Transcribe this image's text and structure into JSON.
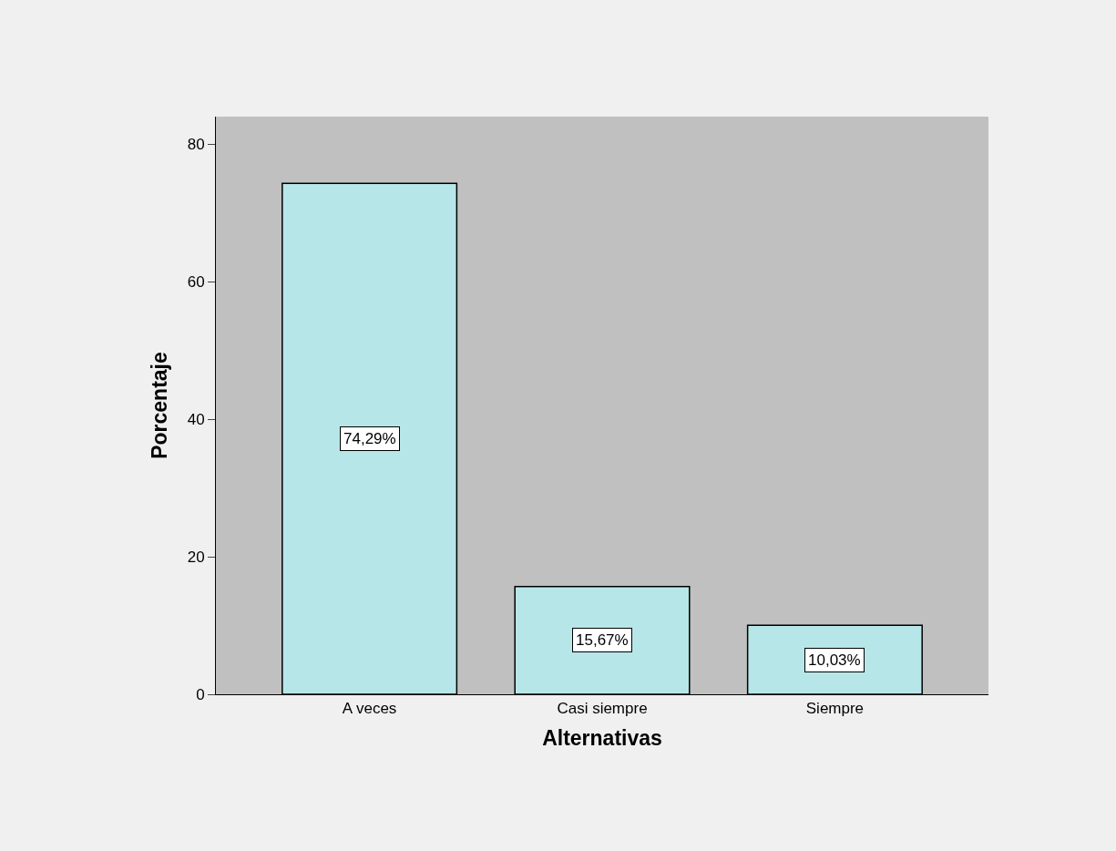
{
  "chart_data": {
    "type": "bar",
    "xlabel": "Alternativas",
    "ylabel": "Porcentaje",
    "categories": [
      "A veces",
      "Casi siempre",
      "Siempre"
    ],
    "values": [
      74.29,
      15.67,
      10.03
    ],
    "value_labels": [
      "74,29%",
      "15,67%",
      "10,03%"
    ],
    "color": "#b7e6e8",
    "ylim": [
      0,
      84
    ],
    "yticks": [
      0,
      20,
      40,
      60,
      80
    ],
    "grid": false,
    "legend": false
  }
}
